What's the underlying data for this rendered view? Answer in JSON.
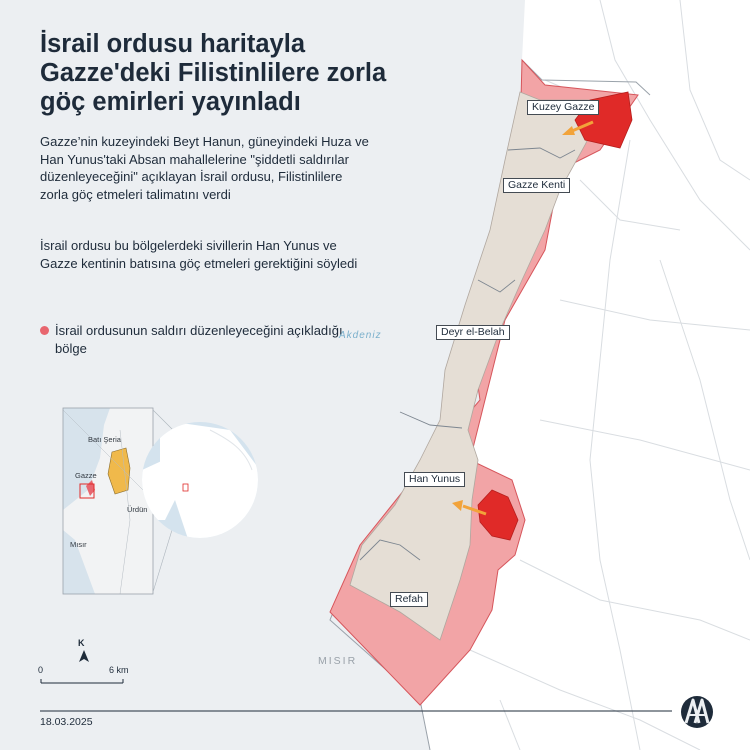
{
  "header": {
    "title": "İsrail ordusu haritayla Gazze'deki Filistinlilere zorla göç emirleri yayınladı"
  },
  "description": {
    "paragraph_1": "Gazze’nin kuzeyindeki Beyt Hanun, güneyindeki Huza ve Han Yunus'taki Absan mahallelerine \"şiddetli saldırılar düzenleyeceğini\" açıklayan İsrail ordusu, Filistinlilere zorla göç etmeleri talimatını verdi",
    "paragraph_2": "İsrail ordusu bu bölgelerdeki sivillerin Han Yunus ve Gazze kentinin batısına göç etmeleri gerektiğini söyledi"
  },
  "legend": {
    "label": "İsrail ordusunun saldırı düzenleyeceğini açıkladığı bölge",
    "color": "#e8666f"
  },
  "map": {
    "places": {
      "kuzey_gazze": "Kuzey Gazze",
      "gazze_kenti": "Gazze Kenti",
      "deyr_el_belah": "Deyr el-Belah",
      "han_yunus": "Han Yunus",
      "refah": "Refah"
    },
    "sea_label": "Akdeniz",
    "country_label": "MISIR",
    "inset": {
      "bati_seria": "Batı Şeria",
      "gazze": "Gazze",
      "urdun": "Ürdün",
      "misir": "Mısır"
    },
    "compass": "K",
    "scale": {
      "start": "0",
      "end": "6 km"
    },
    "colors": {
      "sea": "#eceff2",
      "land": "#ffffff",
      "gaza_strip": "#e5ded5",
      "attack_zone": "#f2a4a6",
      "highlight": "#e02a28",
      "arrow": "#f2a33a"
    }
  },
  "footer": {
    "date": "18.03.2025",
    "logo_alt": "AA"
  }
}
